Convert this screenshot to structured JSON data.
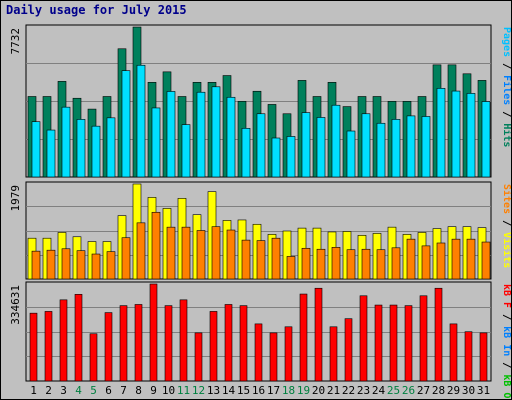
{
  "title": "Daily usage for July 2015",
  "colors": {
    "frame_bg": "#C0C0C0",
    "plot_bg": "#C0C0C0",
    "hits": "#00805C",
    "files": "#00E0FF",
    "pages": "#00C0FF",
    "visits": "#FFFF00",
    "sites": "#FF8000",
    "kbf": "#FF0000",
    "kbin": "#0080FF",
    "kbout": "#00C000",
    "weekend": "#008040",
    "weekday": "#000000"
  },
  "chart_data": [
    {
      "type": "bar",
      "name": "hits-files-pages",
      "y_max_label": "7732",
      "ylim": [
        0,
        7732
      ],
      "right_label": [
        {
          "text": "Pages",
          "color": "#00C0FF"
        },
        {
          "text": " / ",
          "color": "#000000"
        },
        {
          "text": "Files",
          "color": "#0080FF"
        },
        {
          "text": " / ",
          "color": "#000000"
        },
        {
          "text": "Hits",
          "color": "#00805C"
        }
      ],
      "categories": [
        "1",
        "2",
        "3",
        "4",
        "5",
        "6",
        "7",
        "8",
        "9",
        "10",
        "11",
        "12",
        "13",
        "14",
        "15",
        "16",
        "17",
        "18",
        "19",
        "20",
        "21",
        "22",
        "23",
        "24",
        "25",
        "26",
        "27",
        "28",
        "29",
        "30",
        "31"
      ],
      "series": [
        {
          "name": "Hits",
          "values": [
            4150,
            4150,
            4930,
            4060,
            3500,
            4150,
            6610,
            7730,
            4880,
            5420,
            4150,
            4880,
            4880,
            5230,
            3900,
            4420,
            3740,
            3260,
            4980,
            4150,
            4880,
            3630,
            4150,
            4150,
            3900,
            3900,
            4150,
            5780,
            5780,
            5320,
            4980
          ]
        },
        {
          "name": "Files",
          "values": [
            2850,
            2420,
            3600,
            2970,
            2620,
            3050,
            5480,
            5760,
            3560,
            4410,
            2700,
            4370,
            4650,
            4110,
            2510,
            3260,
            2010,
            2090,
            3320,
            3070,
            3700,
            2370,
            3260,
            2770,
            2970,
            3150,
            3120,
            4570,
            4430,
            4310,
            3890
          ]
        },
        {
          "name": "Pages",
          "values": [
            2850,
            2420,
            3600,
            2970,
            2620,
            3050,
            5480,
            5760,
            3560,
            4410,
            2700,
            4370,
            4650,
            4110,
            2510,
            3260,
            2010,
            2090,
            3320,
            3070,
            3700,
            2370,
            3260,
            2770,
            2970,
            3150,
            3120,
            4570,
            4430,
            4310,
            3890
          ]
        }
      ]
    },
    {
      "type": "bar",
      "name": "visits-sites",
      "y_max_label": "1979",
      "ylim": [
        0,
        1979
      ],
      "right_label": [
        {
          "text": "Sites",
          "color": "#FF8000"
        },
        {
          "text": " / ",
          "color": "#000000"
        },
        {
          "text": "Visits",
          "color": "#FFFF00"
        }
      ],
      "categories": [
        "1",
        "2",
        "3",
        "4",
        "5",
        "6",
        "7",
        "8",
        "9",
        "10",
        "11",
        "12",
        "13",
        "14",
        "15",
        "16",
        "17",
        "18",
        "19",
        "20",
        "21",
        "22",
        "23",
        "24",
        "25",
        "26",
        "27",
        "28",
        "29",
        "30",
        "31"
      ],
      "series": [
        {
          "name": "Visits",
          "values": [
            850,
            850,
            970,
            880,
            780,
            780,
            1320,
            1979,
            1700,
            1470,
            1680,
            1340,
            1820,
            1220,
            1230,
            1140,
            930,
            1000,
            1060,
            1060,
            980,
            990,
            910,
            950,
            1080,
            930,
            970,
            1050,
            1090,
            1090,
            1070
          ]
        },
        {
          "name": "Sites",
          "values": [
            580,
            600,
            630,
            590,
            520,
            570,
            860,
            1170,
            1390,
            1080,
            1080,
            1010,
            1090,
            1020,
            810,
            800,
            850,
            470,
            640,
            620,
            660,
            610,
            620,
            610,
            650,
            830,
            690,
            750,
            830,
            830,
            770
          ]
        }
      ]
    },
    {
      "type": "bar",
      "name": "kbytes",
      "y_max_label": "334631",
      "ylim": [
        0,
        334631
      ],
      "right_label": [
        {
          "text": "kB F",
          "color": "#FF0000"
        },
        {
          "text": " / ",
          "color": "#000000"
        },
        {
          "text": "kB In",
          "color": "#0080FF"
        },
        {
          "text": " / ",
          "color": "#000000"
        },
        {
          "text": "kB Out",
          "color": "#00C000"
        }
      ],
      "categories": [
        "1",
        "2",
        "3",
        "4",
        "5",
        "6",
        "7",
        "8",
        "9",
        "10",
        "11",
        "12",
        "13",
        "14",
        "15",
        "16",
        "17",
        "18",
        "19",
        "20",
        "21",
        "22",
        "23",
        "24",
        "25",
        "26",
        "27",
        "28",
        "29",
        "30",
        "31"
      ],
      "series": [
        {
          "name": "kB F",
          "values": [
            234000,
            240000,
            280000,
            299000,
            163000,
            236000,
            260000,
            264000,
            334631,
            260000,
            280000,
            166000,
            240000,
            264000,
            260000,
            197000,
            166000,
            187000,
            300000,
            320000,
            187000,
            215000,
            294000,
            262000,
            262000,
            260000,
            294000,
            320000,
            197000,
            170000,
            166000
          ]
        }
      ]
    }
  ],
  "x_axis": {
    "labels": [
      "1",
      "2",
      "3",
      "4",
      "5",
      "6",
      "7",
      "8",
      "9",
      "10",
      "11",
      "12",
      "13",
      "14",
      "15",
      "16",
      "17",
      "18",
      "19",
      "20",
      "21",
      "22",
      "23",
      "24",
      "25",
      "26",
      "27",
      "28",
      "29",
      "30",
      "31"
    ],
    "weekend_days": [
      "4",
      "5",
      "11",
      "12",
      "18",
      "19",
      "25",
      "26"
    ]
  }
}
